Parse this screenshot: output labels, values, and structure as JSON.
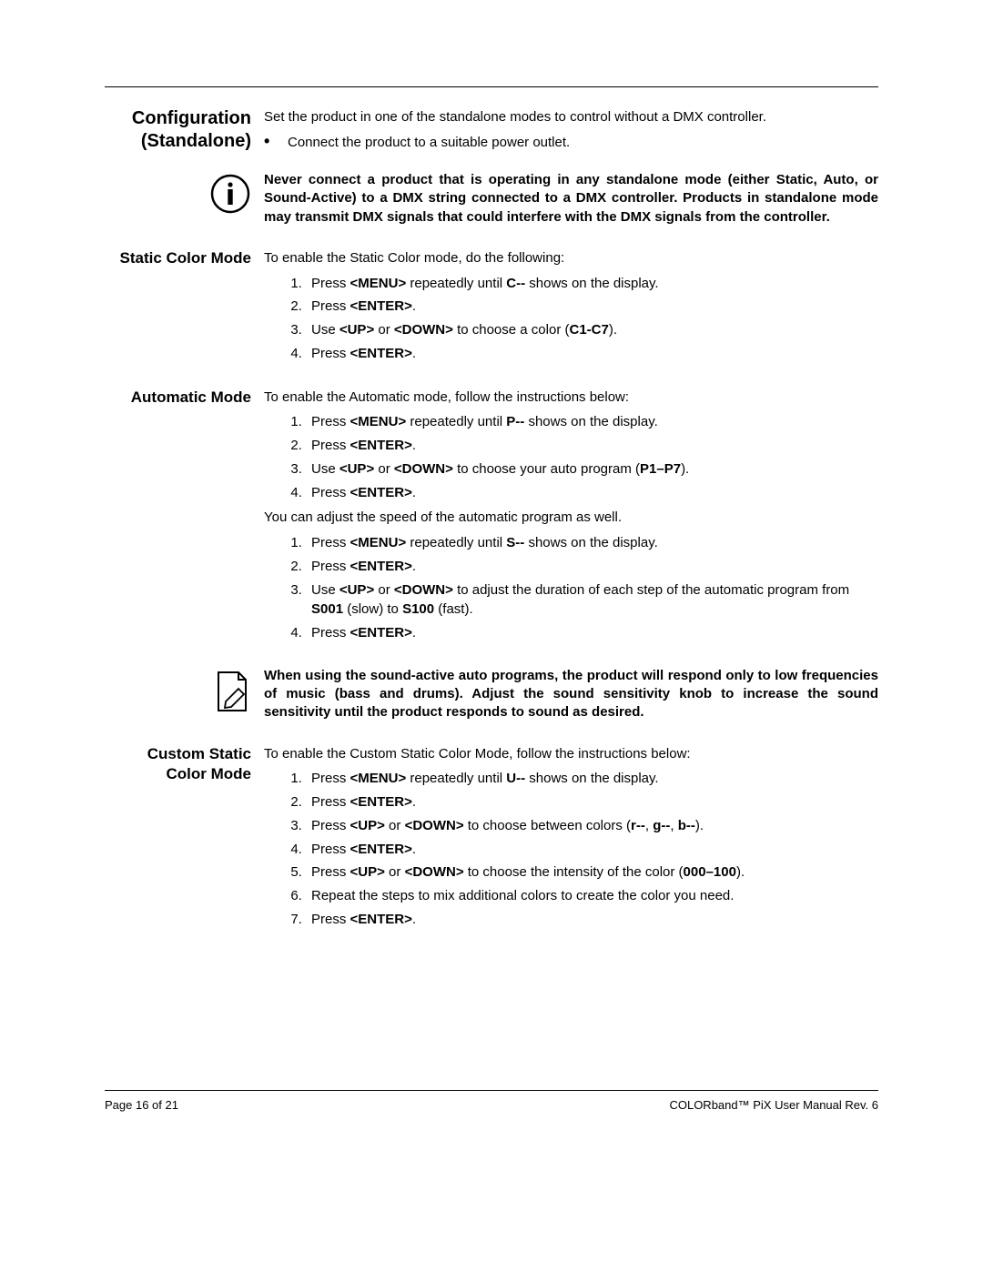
{
  "footer": {
    "page": "Page 16 of 21",
    "doc": "COLORband™ PiX User Manual Rev. 6"
  },
  "sections": {
    "config": {
      "heading_l1": "Configuration",
      "heading_l2": "(Standalone)",
      "intro": "Set the product in one of the standalone modes to control without a DMX controller.",
      "bullet1": "Connect the product to a suitable power outlet."
    },
    "warning1": "Never connect a product that is operating in any standalone mode (either Static, Auto, or Sound-Active) to a DMX string connected to a DMX controller. Products in standalone mode may transmit DMX signals that could interfere with the DMX signals from the controller.",
    "static": {
      "heading": "Static Color Mode",
      "intro": "To enable the Static Color mode, do the following:",
      "steps": [
        "Press <b>&lt;MENU&gt;</b> repeatedly until <b>C--</b> shows on the display.",
        "Press <b>&lt;ENTER&gt;</b>.",
        "Use <b>&lt;UP&gt;</b> or <b>&lt;DOWN&gt;</b> to choose a color (<b>C1-C7</b>).",
        "Press <b>&lt;ENTER&gt;</b>."
      ]
    },
    "auto": {
      "heading": "Automatic Mode",
      "intro": "To enable the Automatic mode, follow the instructions below:",
      "steps": [
        "Press <b>&lt;MENU&gt;</b> repeatedly until <b>P--</b> shows on the display.",
        "Press <b>&lt;ENTER&gt;</b>.",
        "Use <b>&lt;UP&gt;</b> or <b>&lt;DOWN&gt;</b> to choose your auto program (<b>P1–P7</b>).",
        "Press <b>&lt;ENTER&gt;</b>."
      ],
      "speed_intro": "You can adjust the speed of the automatic program as well.",
      "speed_steps": [
        "Press <b>&lt;MENU&gt;</b> repeatedly until <b>S--</b> shows on the display.",
        "Press <b>&lt;ENTER&gt;</b>.",
        "Use <b>&lt;UP&gt;</b> or <b>&lt;DOWN&gt;</b> to adjust the duration of each step of the automatic program from <b>S001</b> (slow) to <b>S100</b> (fast).",
        "Press <b>&lt;ENTER&gt;</b>."
      ]
    },
    "warning2": "When using the sound-active auto programs, the product will respond only to low frequencies of music (bass and drums). Adjust the sound sensitivity knob to increase the sound sensitivity until the product responds to sound as desired.",
    "custom": {
      "heading_l1": "Custom Static",
      "heading_l2": "Color Mode",
      "intro": "To enable the Custom Static Color Mode, follow the instructions below:",
      "steps": [
        "Press <b>&lt;MENU&gt;</b> repeatedly until <b>U--</b> shows on the display.",
        "Press <b>&lt;ENTER&gt;</b>.",
        "Press <b>&lt;UP&gt;</b> or <b>&lt;DOWN&gt;</b> to choose between colors (<b>r--</b>, <b>g--</b>, <b>b--</b>).",
        "Press <b>&lt;ENTER&gt;</b>.",
        "Press <b>&lt;UP&gt;</b> or <b>&lt;DOWN&gt;</b> to choose the intensity of the color (<b>000–100</b>).",
        "Repeat the steps to mix additional colors to create the color you need.",
        "Press <b>&lt;ENTER&gt;</b>."
      ]
    }
  }
}
